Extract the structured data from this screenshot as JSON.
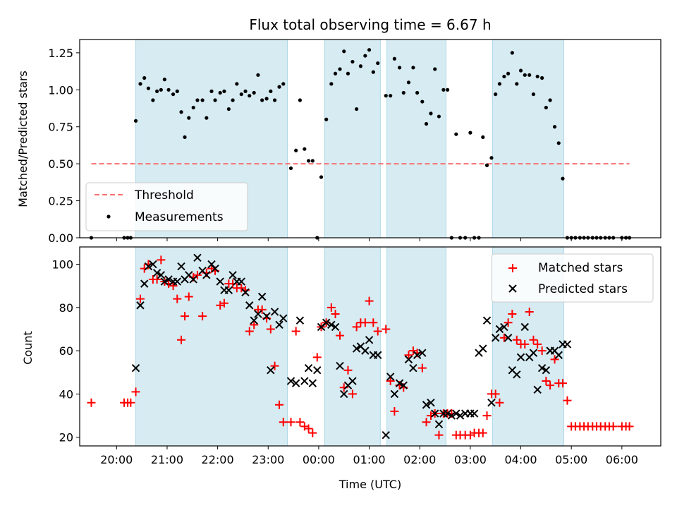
{
  "chart_data": [
    {
      "type": "scatter",
      "title": "Flux total observing time = 6.67 h",
      "ylabel": "Matched/Predicted stars",
      "xlabel": "",
      "xlim": [
        19.27,
        30.77
      ],
      "ylim": [
        0,
        1.34
      ],
      "yticks": [
        "0.00",
        "0.25",
        "0.50",
        "0.75",
        "1.00",
        "1.25"
      ],
      "shaded_intervals": [
        [
          20.38,
          23.38
        ],
        [
          24.12,
          25.22
        ],
        [
          25.35,
          26.52
        ],
        [
          27.44,
          28.85
        ]
      ],
      "threshold": {
        "label": "Threshold",
        "value": 0.5,
        "x_range": [
          19.5,
          30.15
        ],
        "color": "#f87171"
      },
      "legend": {
        "position": "lower-left",
        "entries": [
          "Threshold",
          "Measurements"
        ]
      },
      "series": [
        {
          "name": "Measurements",
          "color": "#000000",
          "x": [
            19.5,
            20.15,
            20.22,
            20.28,
            20.38,
            20.47,
            20.55,
            20.63,
            20.72,
            20.8,
            20.88,
            20.95,
            21.03,
            21.12,
            21.2,
            21.28,
            21.35,
            21.43,
            21.52,
            21.6,
            21.7,
            21.78,
            21.88,
            21.95,
            22.05,
            22.13,
            22.22,
            22.3,
            22.38,
            22.47,
            22.55,
            22.63,
            22.72,
            22.8,
            22.88,
            22.97,
            23.05,
            23.13,
            23.22,
            23.3,
            23.45,
            23.55,
            23.63,
            23.72,
            23.8,
            23.88,
            23.97,
            24.05,
            24.15,
            24.25,
            24.33,
            24.42,
            24.5,
            24.58,
            24.67,
            24.75,
            24.83,
            24.92,
            25.0,
            25.08,
            25.17,
            25.33,
            25.42,
            25.5,
            25.6,
            25.68,
            25.78,
            25.87,
            25.95,
            26.05,
            26.13,
            26.22,
            26.3,
            26.38,
            26.47,
            26.55,
            26.63,
            26.72,
            26.8,
            26.9,
            27.0,
            27.08,
            27.17,
            27.25,
            27.33,
            27.42,
            27.5,
            27.58,
            27.67,
            27.75,
            27.83,
            27.92,
            28.0,
            28.08,
            28.17,
            28.25,
            28.33,
            28.42,
            28.5,
            28.58,
            28.67,
            28.75,
            28.83,
            28.92,
            29.0,
            29.08,
            29.17,
            29.25,
            29.33,
            29.42,
            29.5,
            29.58,
            29.67,
            29.75,
            29.83,
            30.0,
            30.08,
            30.15
          ],
          "y": [
            0.0,
            0.0,
            0.0,
            0.0,
            0.79,
            1.04,
            1.08,
            1.01,
            0.93,
            0.99,
            1.0,
            1.07,
            1.0,
            0.97,
            0.99,
            0.85,
            0.68,
            0.81,
            0.88,
            0.93,
            0.93,
            0.81,
            0.99,
            0.93,
            0.98,
            0.99,
            0.87,
            0.93,
            1.04,
            0.97,
            0.99,
            0.96,
            0.98,
            1.1,
            0.93,
            0.94,
            0.99,
            0.93,
            1.02,
            1.04,
            0.47,
            0.59,
            0.93,
            0.6,
            0.52,
            0.52,
            0.0,
            0.41,
            0.8,
            1.04,
            1.11,
            1.14,
            1.26,
            1.11,
            1.19,
            0.87,
            1.16,
            1.23,
            1.27,
            1.12,
            1.18,
            0.96,
            0.96,
            1.21,
            1.15,
            0.98,
            1.05,
            1.15,
            0.98,
            0.92,
            0.77,
            0.84,
            1.14,
            0.82,
            1.0,
            1.0,
            0.0,
            0.7,
            0.0,
            0.0,
            0.71,
            0.0,
            0.0,
            0.68,
            0.49,
            0.54,
            0.97,
            1.04,
            1.09,
            1.11,
            1.25,
            1.04,
            1.13,
            1.1,
            1.1,
            0.97,
            1.09,
            1.08,
            0.88,
            0.93,
            0.75,
            0.64,
            0.4,
            0.0,
            0.0,
            0.0,
            0.0,
            0.0,
            0.0,
            0.0,
            0.0,
            0.0,
            0.0,
            0.0,
            0.0,
            0.0,
            0.0,
            0.0
          ]
        }
      ]
    },
    {
      "type": "scatter",
      "title": "",
      "ylabel": "Count",
      "xlabel": "Time (UTC)",
      "xlim": [
        19.27,
        30.77
      ],
      "ylim": [
        16,
        108
      ],
      "yticks": [
        "20",
        "40",
        "60",
        "80",
        "100"
      ],
      "xticks": [
        "20:00",
        "21:00",
        "22:00",
        "23:00",
        "00:00",
        "01:00",
        "02:00",
        "03:00",
        "04:00",
        "05:00",
        "06:00"
      ],
      "shaded_intervals": [
        [
          20.38,
          23.38
        ],
        [
          24.12,
          25.22
        ],
        [
          25.35,
          26.52
        ],
        [
          27.44,
          28.85
        ]
      ],
      "legend": {
        "position": "upper-right",
        "entries": [
          "Matched stars",
          "Predicted stars"
        ]
      },
      "series": [
        {
          "name": "Matched stars",
          "color": "#ff0000",
          "x": [
            19.5,
            20.15,
            20.22,
            20.28,
            20.38,
            20.47,
            20.55,
            20.63,
            20.72,
            20.8,
            20.88,
            20.95,
            21.03,
            21.12,
            21.2,
            21.28,
            21.35,
            21.43,
            21.52,
            21.6,
            21.7,
            21.78,
            21.88,
            21.95,
            22.05,
            22.13,
            22.22,
            22.3,
            22.38,
            22.47,
            22.55,
            22.63,
            22.72,
            22.8,
            22.88,
            22.97,
            23.05,
            23.13,
            23.22,
            23.3,
            23.45,
            23.55,
            23.63,
            23.72,
            23.8,
            23.88,
            23.97,
            24.05,
            24.15,
            24.25,
            24.33,
            24.42,
            24.5,
            24.58,
            24.67,
            24.75,
            24.83,
            24.92,
            25.0,
            25.08,
            25.17,
            25.33,
            25.42,
            25.5,
            25.6,
            25.68,
            25.78,
            25.87,
            25.95,
            26.05,
            26.13,
            26.22,
            26.3,
            26.38,
            26.47,
            26.55,
            26.63,
            26.72,
            26.8,
            26.9,
            27.0,
            27.08,
            27.17,
            27.25,
            27.33,
            27.42,
            27.5,
            27.58,
            27.67,
            27.75,
            27.83,
            27.92,
            28.0,
            28.08,
            28.17,
            28.25,
            28.33,
            28.42,
            28.5,
            28.58,
            28.67,
            28.75,
            28.83,
            28.92,
            29.0,
            29.08,
            29.17,
            29.25,
            29.33,
            29.42,
            29.5,
            29.58,
            29.67,
            29.75,
            29.83,
            30.0,
            30.08,
            30.15
          ],
          "y": [
            36,
            36,
            36,
            36,
            41,
            84,
            98,
            100,
            93,
            93,
            102,
            92,
            91,
            90,
            84,
            65,
            76,
            85,
            94,
            95,
            76,
            96,
            98,
            97,
            81,
            82,
            91,
            91,
            89,
            89,
            88,
            69,
            72,
            79,
            79,
            75,
            70,
            53,
            35,
            27,
            27,
            69,
            27,
            25,
            24,
            22,
            57,
            71,
            73,
            80,
            77,
            67,
            43,
            51,
            40,
            71,
            73,
            73,
            83,
            73,
            69,
            70,
            46,
            32,
            44,
            43,
            58,
            60,
            59,
            52,
            27,
            30,
            31,
            21,
            31,
            31,
            31,
            21,
            21,
            21,
            21,
            22,
            22,
            22,
            30,
            40,
            40,
            36,
            66,
            73,
            77,
            65,
            63,
            63,
            78,
            65,
            63,
            60,
            46,
            44,
            56,
            45,
            45,
            37,
            25,
            25,
            25,
            25,
            25,
            25,
            25,
            25,
            25,
            25,
            25,
            25,
            25,
            25
          ]
        },
        {
          "name": "Predicted stars",
          "color": "#000000",
          "x": [
            20.38,
            20.47,
            20.55,
            20.63,
            20.72,
            20.8,
            20.88,
            20.95,
            21.03,
            21.12,
            21.2,
            21.28,
            21.35,
            21.43,
            21.52,
            21.6,
            21.7,
            21.78,
            21.88,
            21.95,
            22.05,
            22.13,
            22.22,
            22.3,
            22.38,
            22.47,
            22.55,
            22.63,
            22.72,
            22.8,
            22.88,
            22.97,
            23.05,
            23.13,
            23.22,
            23.3,
            23.45,
            23.55,
            23.63,
            23.72,
            23.8,
            23.88,
            23.97,
            24.05,
            24.15,
            24.25,
            24.33,
            24.42,
            24.5,
            24.58,
            24.67,
            24.75,
            24.83,
            24.92,
            25.0,
            25.08,
            25.17,
            25.33,
            25.42,
            25.5,
            25.6,
            25.68,
            25.78,
            25.87,
            25.95,
            26.05,
            26.13,
            26.22,
            26.3,
            26.38,
            26.47,
            26.55,
            26.63,
            26.72,
            26.8,
            26.9,
            27.0,
            27.08,
            27.17,
            27.25,
            27.33,
            27.42,
            27.5,
            27.58,
            27.67,
            27.75,
            27.83,
            27.92,
            28.0,
            28.08,
            28.17,
            28.25,
            28.33,
            28.42,
            28.5,
            28.58,
            28.67,
            28.75,
            28.83,
            28.92
          ],
          "y": [
            52,
            81,
            91,
            99,
            100,
            96,
            95,
            92,
            93,
            92,
            92,
            99,
            93,
            95,
            93,
            103,
            97,
            95,
            100,
            98,
            92,
            88,
            88,
            95,
            92,
            92,
            87,
            81,
            74,
            77,
            85,
            76,
            51,
            78,
            72,
            75,
            46,
            45,
            74,
            46,
            52,
            45,
            51,
            71,
            73,
            72,
            71,
            53,
            40,
            44,
            46,
            61,
            62,
            60,
            65,
            58,
            58,
            21,
            48,
            40,
            45,
            44,
            56,
            52,
            58,
            59,
            35,
            36,
            31,
            26,
            31,
            31,
            30,
            31,
            30,
            31,
            31,
            31,
            59,
            61,
            74,
            36,
            66,
            70,
            71,
            66,
            51,
            49,
            57,
            71,
            57,
            59,
            42,
            52,
            51,
            60,
            60,
            58,
            63,
            63
          ]
        }
      ]
    }
  ]
}
